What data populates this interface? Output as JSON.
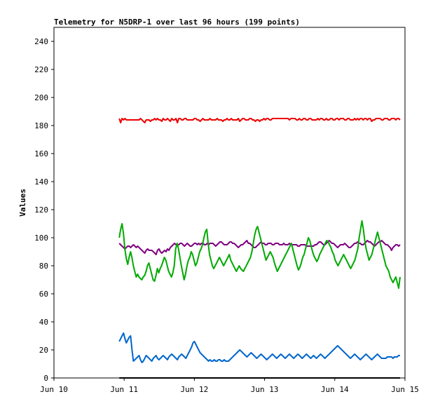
{
  "chart_data": {
    "type": "line",
    "title": "Telemetry for N5DRP-1 over last 96 hours (199 points)",
    "xlabel": "",
    "ylabel": "Values",
    "xlim": [
      "Jun 10",
      "Jun 15"
    ],
    "ylim": [
      0,
      250
    ],
    "x_tick_labels": [
      "Jun 10",
      "Jun 11",
      "Jun 12",
      "Jun 13",
      "Jun 14",
      "Jun 15"
    ],
    "y_tick_labels": [
      "0",
      "20",
      "40",
      "60",
      "80",
      "100",
      "120",
      "140",
      "160",
      "180",
      "200",
      "220",
      "240"
    ],
    "grid": false,
    "legend": "none",
    "x_start": "Jun 10.93",
    "x_end": "Jun 14.93",
    "series": [
      {
        "color": "#ee0000",
        "values": [
          185,
          182,
          185,
          184,
          185,
          184,
          184,
          184,
          184,
          184,
          184,
          184,
          184,
          184,
          184,
          185,
          184,
          183,
          182,
          184,
          184,
          184,
          183,
          184,
          184,
          185,
          184,
          185,
          184,
          184,
          183,
          185,
          184,
          184,
          185,
          184,
          183,
          185,
          184,
          184,
          185,
          182,
          185,
          185,
          184,
          184,
          185,
          185,
          184,
          184,
          184,
          184,
          184,
          185,
          185,
          184,
          184,
          183,
          184,
          185,
          184,
          184,
          184,
          184,
          185,
          184,
          184,
          184,
          184,
          185,
          184,
          184,
          184,
          183,
          184,
          184,
          185,
          184,
          184,
          185,
          184,
          184,
          184,
          184,
          185,
          183,
          184,
          185,
          185,
          184,
          184,
          184,
          185,
          185,
          184,
          184,
          183,
          184,
          184,
          183,
          184,
          184,
          185,
          184,
          185,
          185,
          184,
          184,
          185,
          185,
          185,
          185,
          185,
          185,
          185,
          185,
          185,
          185,
          185,
          185,
          184,
          185,
          185,
          185,
          185,
          184,
          184,
          185,
          184,
          184,
          185,
          185,
          184,
          184,
          185,
          185,
          184,
          184,
          184,
          184,
          185,
          184,
          185,
          185,
          184,
          184,
          185,
          184,
          184,
          185,
          185,
          184,
          184,
          185,
          185,
          184,
          185,
          185,
          185,
          184,
          184,
          185,
          185,
          184,
          184,
          184,
          185,
          184,
          185,
          184,
          185,
          185,
          184,
          185,
          185,
          184,
          185,
          185,
          183,
          184,
          184,
          185,
          185,
          185,
          185,
          184,
          184,
          185,
          185,
          185,
          184,
          184,
          185,
          185,
          185,
          184,
          185,
          185,
          184
        ]
      },
      {
        "color": "#800080",
        "values": [
          96,
          95,
          94,
          93,
          92,
          93,
          94,
          94,
          93,
          94,
          95,
          94,
          93,
          94,
          93,
          92,
          91,
          90,
          89,
          91,
          92,
          91,
          91,
          91,
          90,
          89,
          88,
          91,
          92,
          90,
          89,
          90,
          91,
          90,
          92,
          91,
          93,
          94,
          95,
          96,
          95,
          95,
          95,
          96,
          96,
          95,
          94,
          95,
          96,
          95,
          94,
          94,
          95,
          96,
          96,
          95,
          96,
          95,
          96,
          96,
          95,
          95,
          96,
          95,
          96,
          96,
          96,
          95,
          94,
          95,
          96,
          97,
          97,
          96,
          95,
          95,
          95,
          96,
          97,
          97,
          96,
          96,
          95,
          94,
          93,
          94,
          95,
          95,
          96,
          97,
          98,
          96,
          96,
          95,
          94,
          93,
          93,
          94,
          95,
          96,
          97,
          96,
          96,
          95,
          95,
          96,
          96,
          96,
          95,
          95,
          96,
          96,
          96,
          95,
          95,
          95,
          96,
          95,
          95,
          95,
          96,
          95,
          95,
          95,
          95,
          95,
          94,
          94,
          95,
          95,
          95,
          95,
          94,
          94,
          94,
          94,
          94,
          94,
          95,
          95,
          96,
          97,
          97,
          96,
          95,
          95,
          96,
          97,
          98,
          97,
          96,
          96,
          95,
          94,
          93,
          94,
          95,
          95,
          95,
          96,
          95,
          94,
          93,
          93,
          94,
          95,
          96,
          96,
          97,
          96,
          96,
          95,
          95,
          96,
          97,
          98,
          97,
          97,
          96,
          95,
          94,
          95,
          96,
          97,
          97,
          98,
          97,
          96,
          95,
          95,
          94,
          93,
          91,
          93,
          94,
          95,
          95,
          94,
          95
        ]
      },
      {
        "color": "#00aa00",
        "values": [
          100,
          106,
          110,
          103,
          92,
          85,
          81,
          86,
          90,
          86,
          80,
          76,
          72,
          74,
          72,
          71,
          70,
          72,
          73,
          76,
          80,
          82,
          78,
          74,
          70,
          69,
          73,
          78,
          75,
          78,
          80,
          83,
          86,
          84,
          80,
          76,
          74,
          72,
          75,
          80,
          92,
          96,
          92,
          86,
          80,
          75,
          70,
          74,
          80,
          84,
          86,
          90,
          88,
          84,
          80,
          82,
          86,
          90,
          92,
          95,
          100,
          104,
          106,
          96,
          88,
          84,
          80,
          78,
          80,
          82,
          84,
          86,
          84,
          82,
          80,
          82,
          84,
          86,
          88,
          84,
          82,
          80,
          78,
          76,
          78,
          80,
          78,
          77,
          76,
          78,
          80,
          82,
          84,
          86,
          90,
          96,
          102,
          106,
          108,
          104,
          100,
          96,
          92,
          88,
          84,
          86,
          88,
          90,
          88,
          86,
          82,
          79,
          76,
          78,
          80,
          82,
          84,
          86,
          88,
          90,
          92,
          94,
          96,
          92,
          88,
          84,
          80,
          77,
          79,
          82,
          86,
          88,
          92,
          96,
          100,
          98,
          94,
          90,
          87,
          85,
          83,
          85,
          88,
          90,
          92,
          94,
          96,
          98,
          97,
          95,
          93,
          90,
          88,
          84,
          82,
          80,
          82,
          84,
          86,
          88,
          86,
          84,
          82,
          80,
          78,
          80,
          82,
          84,
          88,
          92,
          100,
          106,
          112,
          106,
          98,
          92,
          88,
          84,
          86,
          88,
          92,
          96,
          100,
          104,
          100,
          96,
          92,
          88,
          84,
          80,
          78,
          76,
          72,
          70,
          68,
          70,
          72,
          68,
          64,
          72
        ]
      },
      {
        "color": "#0066cc",
        "values": [
          26,
          28,
          30,
          32,
          28,
          25,
          27,
          29,
          30,
          20,
          12,
          13,
          14,
          15,
          16,
          13,
          11,
          12,
          14,
          16,
          15,
          14,
          13,
          12,
          14,
          15,
          16,
          14,
          13,
          14,
          15,
          16,
          15,
          14,
          13,
          15,
          16,
          17,
          16,
          15,
          14,
          13,
          15,
          16,
          17,
          16,
          15,
          14,
          16,
          18,
          20,
          22,
          25,
          26,
          24,
          22,
          20,
          18,
          17,
          16,
          15,
          14,
          13,
          12,
          13,
          12,
          12,
          13,
          12,
          12,
          13,
          13,
          12,
          12,
          13,
          12,
          12,
          12,
          13,
          14,
          15,
          16,
          17,
          18,
          19,
          20,
          19,
          18,
          17,
          16,
          15,
          16,
          17,
          18,
          17,
          16,
          15,
          14,
          15,
          16,
          17,
          16,
          15,
          14,
          13,
          14,
          15,
          16,
          17,
          16,
          15,
          14,
          15,
          16,
          17,
          16,
          15,
          14,
          15,
          16,
          17,
          16,
          15,
          14,
          15,
          16,
          17,
          16,
          15,
          14,
          15,
          16,
          17,
          16,
          15,
          14,
          15,
          16,
          15,
          14,
          15,
          16,
          17,
          16,
          15,
          14,
          15,
          16,
          17,
          18,
          19,
          20,
          21,
          22,
          23,
          22,
          21,
          20,
          19,
          18,
          17,
          16,
          15,
          14,
          15,
          16,
          17,
          16,
          15,
          14,
          13,
          14,
          15,
          16,
          17,
          16,
          15,
          14,
          13,
          14,
          15,
          16,
          17,
          16,
          15,
          14,
          14,
          14,
          14,
          15,
          15,
          15,
          15,
          14,
          15,
          15,
          15,
          16,
          16
        ]
      },
      {
        "color": "#000000",
        "values": [
          0,
          0,
          0,
          0,
          0,
          0,
          0,
          0,
          0,
          0,
          0,
          0,
          0,
          0,
          0,
          0,
          0,
          0,
          0,
          0,
          0,
          0,
          0,
          0,
          0,
          0,
          0,
          0,
          0,
          0,
          0,
          0,
          0,
          0,
          0,
          0,
          0,
          0,
          0,
          0,
          0,
          0,
          0,
          0,
          0,
          0,
          0,
          0,
          0,
          0,
          0,
          0,
          0,
          0,
          0,
          0,
          0,
          0,
          0,
          0,
          0,
          0,
          0,
          0,
          0,
          0,
          0,
          0,
          0,
          0,
          0,
          0,
          0,
          0,
          0,
          0,
          0,
          0,
          0,
          0,
          0,
          0,
          0,
          0,
          0,
          0,
          0,
          0,
          0,
          0,
          0,
          0,
          0,
          0,
          0,
          0,
          0,
          0,
          0,
          0,
          0,
          0,
          0,
          0,
          0,
          0,
          0,
          0,
          0,
          0,
          0,
          0,
          0,
          0,
          0,
          0,
          0,
          0,
          0,
          0,
          0,
          0,
          0,
          0,
          0,
          0,
          0,
          0,
          0,
          0,
          0,
          0,
          0,
          0,
          0,
          0,
          0,
          0,
          0,
          0,
          0,
          0,
          0,
          0,
          0,
          0,
          0,
          0,
          0,
          0,
          0,
          0,
          0,
          0,
          0,
          0,
          0,
          0,
          0,
          0,
          0,
          0,
          0,
          0,
          0,
          0,
          0,
          0,
          0,
          0,
          0,
          0,
          0,
          0,
          0,
          0,
          0,
          0,
          0,
          0,
          0,
          0,
          0,
          0,
          0,
          0,
          0,
          0,
          0,
          0,
          0,
          0,
          0,
          0,
          0,
          0,
          0,
          0,
          0
        ]
      }
    ]
  }
}
